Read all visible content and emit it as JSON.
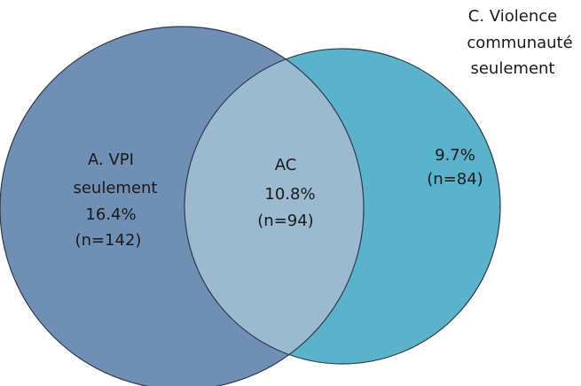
{
  "regions": [
    {
      "label": [
        "A. VPI",
        "seulement"
      ],
      "percent": "16.4%",
      "count": "(n=142)"
    },
    {
      "label": [
        "AC"
      ],
      "percent": "10.8%",
      "count": "(n=94)"
    },
    {
      "label": [
        "C. Violence",
        "communauté",
        "seulement"
      ],
      "percent": "9.7%",
      "count": "(n=84)"
    }
  ]
}
